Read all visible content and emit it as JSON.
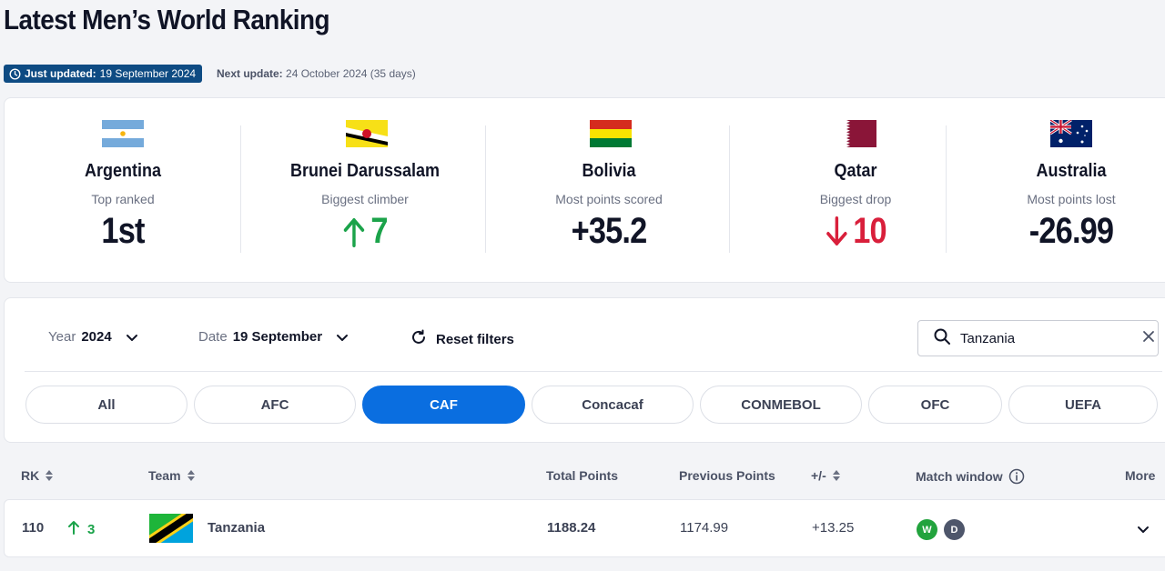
{
  "page": {
    "title": "Latest Men’s World Ranking",
    "updated_label": "Just updated:",
    "updated_value": "19 September 2024",
    "next_label": "Next update:",
    "next_value": "24 October 2024 (35 days)"
  },
  "highlights": [
    {
      "team": "Argentina",
      "caption": "Top ranked",
      "value": "1st",
      "trend": "none",
      "flag": "argentina-flag"
    },
    {
      "team": "Brunei Darussalam",
      "caption": "Biggest climber",
      "value": "7",
      "trend": "up",
      "flag": "brunei-flag"
    },
    {
      "team": "Bolivia",
      "caption": "Most points scored",
      "value": "+35.2",
      "trend": "none",
      "flag": "bolivia-flag"
    },
    {
      "team": "Qatar",
      "caption": "Biggest drop",
      "value": "10",
      "trend": "down",
      "flag": "qatar-flag"
    },
    {
      "team": "Australia",
      "caption": "Most points lost",
      "value": "-26.99",
      "trend": "none",
      "flag": "australia-flag"
    }
  ],
  "filters": {
    "year_label": "Year",
    "year_value": "2024",
    "date_label": "Date",
    "date_value": "19 September",
    "reset_label": "Reset filters",
    "search_value": "Tanzania",
    "confederations": [
      "All",
      "AFC",
      "CAF",
      "Concacaf",
      "CONMEBOL",
      "OFC",
      "UEFA"
    ],
    "active_confederation": "CAF"
  },
  "table": {
    "headers": {
      "rank": "RK",
      "team": "Team",
      "total": "Total Points",
      "previous": "Previous Points",
      "diff": "+/-",
      "window": "Match window",
      "more": "More"
    },
    "rows": [
      {
        "rank": "110",
        "movement": "3",
        "movement_dir": "up",
        "team": "Tanzania",
        "flag": "tanzania-flag",
        "total": "1188.24",
        "previous": "1174.99",
        "diff": "+13.25",
        "results": [
          "W",
          "D"
        ]
      }
    ]
  },
  "colors": {
    "accent": "#0a6ee0",
    "badge_bg": "#0e4b83",
    "up": "#1ba34a",
    "down": "#d91f3b",
    "win": "#22a33d",
    "draw": "#4e566b"
  }
}
